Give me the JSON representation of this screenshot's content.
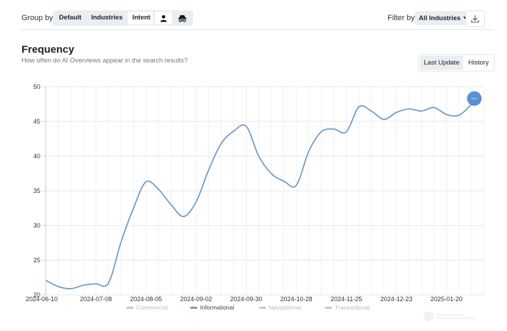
{
  "toolbar": {
    "group_by_label": "Group by",
    "group_options": [
      "Default",
      "Industries",
      "Intent"
    ],
    "group_active": "Intent",
    "view_icons": [
      "person-icon",
      "incognito-icon"
    ],
    "filter_label": "Filter by",
    "filter_value": "All Industries",
    "download_icon": "download-icon"
  },
  "header": {
    "title": "Frequency",
    "subtitle": "How often do AI Overviews appear in the search results?",
    "tabs": [
      "Last Update",
      "History"
    ],
    "active_tab": "Last Update"
  },
  "colors": {
    "line": "#6f9cc6",
    "marker": "#5b8fd3",
    "legend_inactive": "#c6c9cc"
  },
  "chart_data": {
    "type": "line",
    "title": "Frequency",
    "x_tick_labels": [
      "2024-06-10",
      "2024-07-08",
      "2024-08-05",
      "2024-09-02",
      "2024-09-30",
      "2024-10-28",
      "2024-11-25",
      "2024-12-23",
      "2025-01-20"
    ],
    "ylim": [
      20,
      50
    ],
    "y_ticks": [
      20,
      25,
      30,
      35,
      40,
      45,
      50
    ],
    "grid": true,
    "legend_position": "bottom",
    "series": [
      {
        "name": "Commercial",
        "active": false,
        "x": [],
        "y": []
      },
      {
        "name": "Informational",
        "active": true,
        "x": [
          "2024-06-10",
          "2024-06-17",
          "2024-06-24",
          "2024-07-01",
          "2024-07-08",
          "2024-07-15",
          "2024-07-22",
          "2024-07-29",
          "2024-08-05",
          "2024-08-12",
          "2024-08-19",
          "2024-08-26",
          "2024-09-02",
          "2024-09-09",
          "2024-09-16",
          "2024-09-23",
          "2024-09-30",
          "2024-10-07",
          "2024-10-14",
          "2024-10-21",
          "2024-10-28",
          "2024-11-04",
          "2024-11-11",
          "2024-11-18",
          "2024-11-25",
          "2024-12-02",
          "2024-12-09",
          "2024-12-16",
          "2024-12-23",
          "2024-12-30",
          "2025-01-06",
          "2025-01-13",
          "2025-01-20",
          "2025-01-27",
          "2025-02-03"
        ],
        "y": [
          22.1,
          21.2,
          20.9,
          21.4,
          21.6,
          21.7,
          27.6,
          32.5,
          36.3,
          35.2,
          33.0,
          31.3,
          33.4,
          38.0,
          41.8,
          43.6,
          44.3,
          40.0,
          37.5,
          36.4,
          35.8,
          40.7,
          43.5,
          43.9,
          43.5,
          47.1,
          46.5,
          45.3,
          46.3,
          46.8,
          46.5,
          47.0,
          46.0,
          45.9,
          47.5
        ]
      },
      {
        "name": "Navigational",
        "active": false,
        "x": [],
        "y": []
      },
      {
        "name": "Transactional",
        "active": false,
        "x": [],
        "y": []
      }
    ]
  }
}
